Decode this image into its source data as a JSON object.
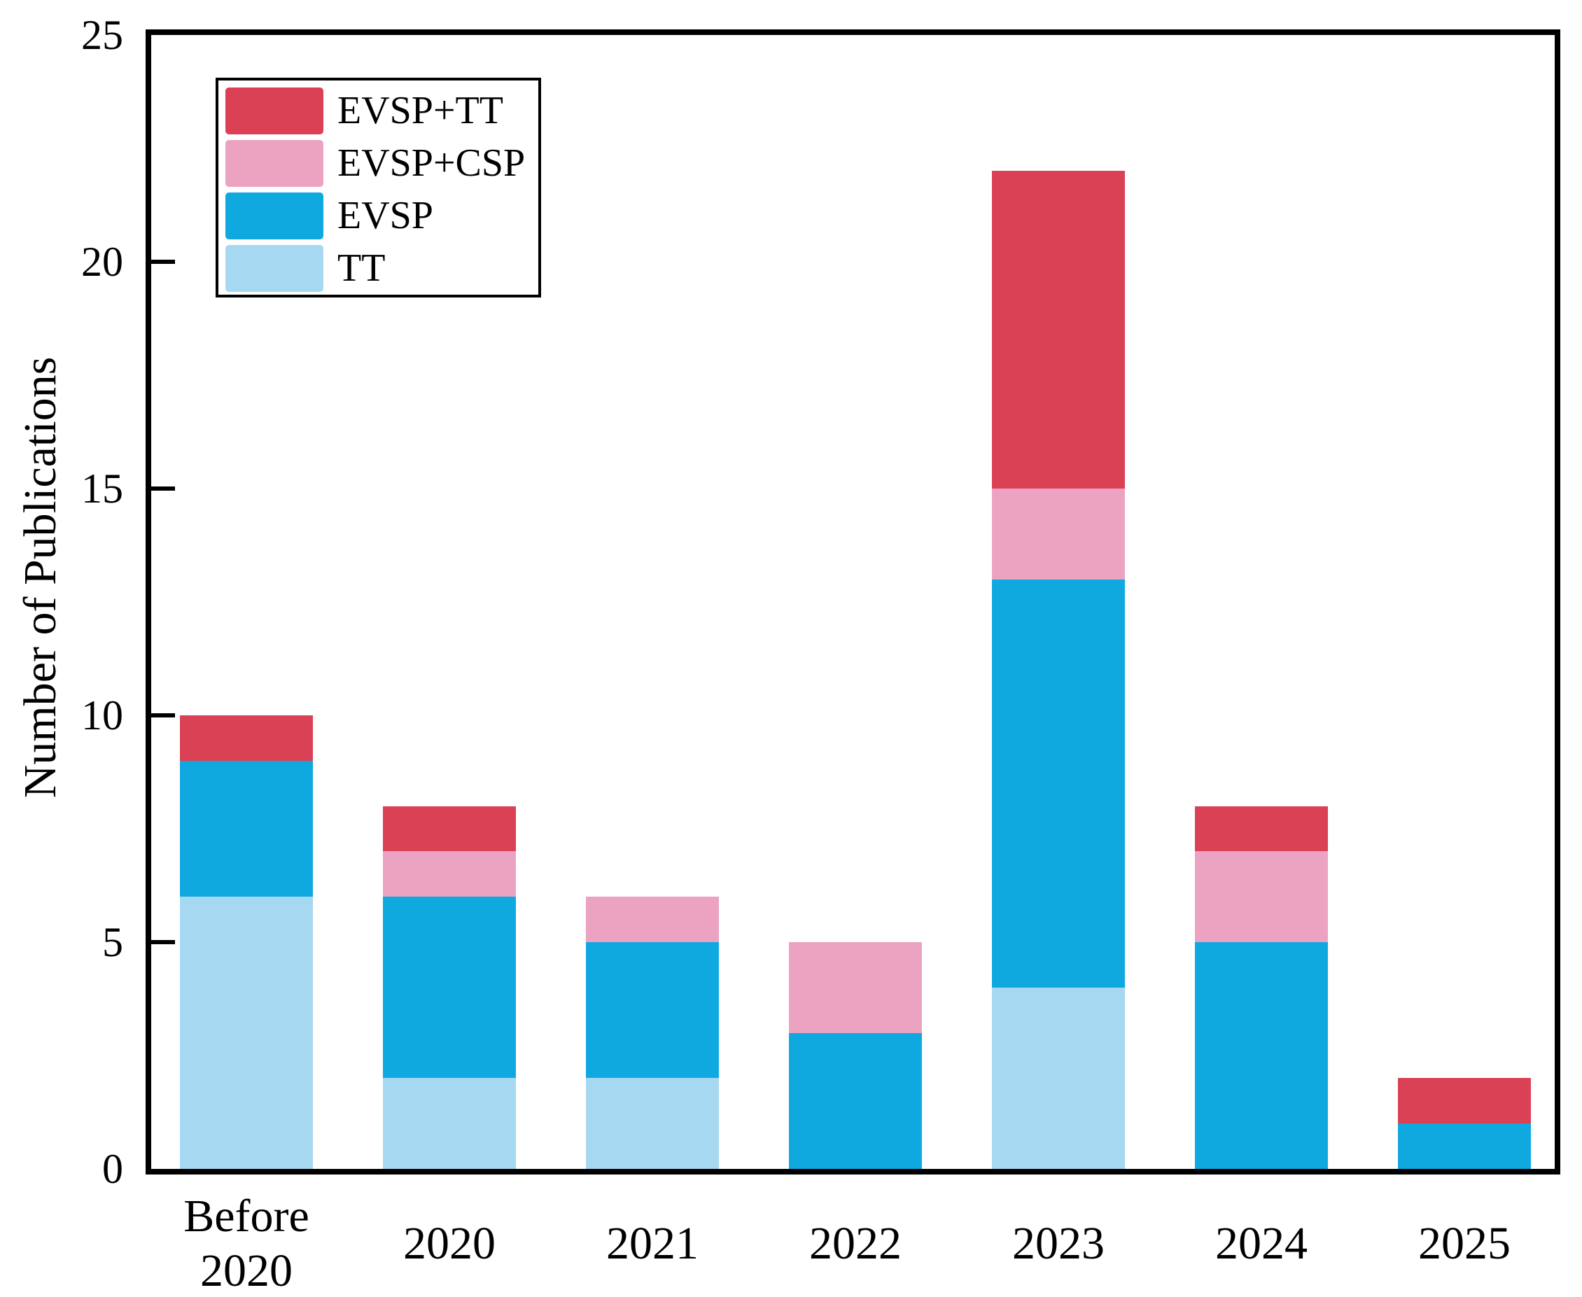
{
  "chart_data": {
    "type": "bar",
    "stacked": true,
    "title": "",
    "xlabel": "",
    "ylabel": "Number of Publications",
    "ylim": [
      0,
      25
    ],
    "yticks": [
      0,
      5,
      10,
      15,
      20,
      25
    ],
    "grid": false,
    "background_color": "#ffffff",
    "axis_color": "#000000",
    "categories": [
      "Before\n2020",
      "2020",
      "2021",
      "2022",
      "2023",
      "2024",
      "2025"
    ],
    "series": [
      {
        "name": "TT",
        "color": "#A6D9F1",
        "values": [
          6,
          2,
          2,
          0,
          4,
          0,
          0
        ]
      },
      {
        "name": "EVSP",
        "color": "#0FA9E0",
        "values": [
          3,
          4,
          3,
          3,
          9,
          5,
          1
        ]
      },
      {
        "name": "EVSP+CSP",
        "color": "#ECA3C2",
        "values": [
          0,
          1,
          1,
          2,
          2,
          2,
          0
        ]
      },
      {
        "name": "EVSP+TT",
        "color": "#DB4155",
        "values": [
          1,
          1,
          0,
          0,
          7,
          1,
          1
        ]
      }
    ],
    "totals": [
      10,
      8,
      6,
      5,
      22,
      8,
      2
    ],
    "legend": {
      "position": "top-left",
      "entries": [
        "EVSP+TT",
        "EVSP+CSP",
        "EVSP",
        "TT"
      ]
    }
  }
}
